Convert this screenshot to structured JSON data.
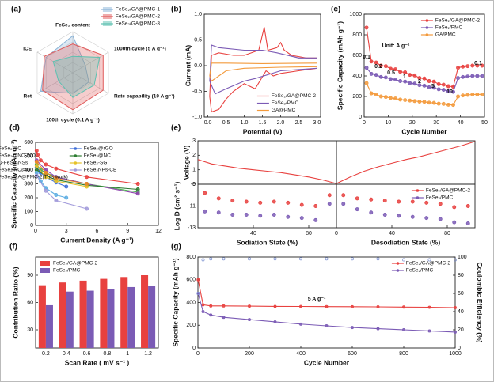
{
  "chart_data": [
    {
      "type": "radar",
      "panel": "(a)",
      "axes": [
        "FeSe₂ content",
        "1000th cycle (5 A g⁻¹)",
        "Rate capability (10 A g⁻¹)",
        "100th cycle (0.1 A g⁻¹)",
        "Rct",
        "ICE"
      ],
      "rlim": [
        0,
        1
      ],
      "rticks": [
        0.25,
        0.5,
        0.75,
        1
      ],
      "legend": "upper right",
      "series": [
        {
          "name": "FeSe₂/GA@PMC-1",
          "color": "#8ab4d8",
          "values": [
            0.9,
            0.35,
            0.45,
            0.5,
            0.9,
            0.75
          ]
        },
        {
          "name": "FeSe₂/GA@PMC-2",
          "color": "#e05a5a",
          "values": [
            0.7,
            0.85,
            0.85,
            0.9,
            0.85,
            0.8
          ]
        },
        {
          "name": "FeSe₂/GA@PMC-3",
          "color": "#5bc0b0",
          "values": [
            0.4,
            0.75,
            0.6,
            0.6,
            0.4,
            0.55
          ]
        }
      ]
    },
    {
      "type": "line",
      "panel": "(b)",
      "xlabel": "Potential (V)",
      "ylabel": "Current (mA)",
      "xlim": [
        -0.1,
        3.1
      ],
      "ylim": [
        -1.0,
        1.0
      ],
      "xticks": [
        {
          "value": 0,
          "label": "0.0"
        },
        0.5,
        {
          "value": 1,
          "label": "1.0"
        },
        1.5,
        {
          "value": 2,
          "label": "2.0"
        },
        2.5,
        {
          "value": 3,
          "label": "3.0"
        }
      ],
      "yticks": [
        {
          "value": -1,
          "label": "-1.0"
        },
        -0.5,
        {
          "value": 0,
          "label": "0.0"
        },
        0.5,
        {
          "value": 1,
          "label": "1.0"
        }
      ],
      "legend": "lower right",
      "series": [
        {
          "name": "FeSe₂/GA@PMC-2",
          "color": "#e8413f",
          "style": "line",
          "x": [
            3.0,
            2.5,
            2.0,
            1.8,
            1.6,
            1.3,
            1.0,
            0.7,
            0.5,
            0.3,
            0.1,
            0.05,
            0.1,
            0.3,
            0.7,
            1.0,
            1.4,
            1.55,
            1.65,
            1.9,
            2.0,
            2.1,
            2.3,
            2.7,
            3.0
          ],
          "values": [
            -0.05,
            -0.1,
            -0.15,
            -0.2,
            -0.1,
            -0.45,
            -0.35,
            -0.5,
            -0.65,
            -0.85,
            -0.9,
            -0.6,
            0.2,
            0.25,
            0.2,
            0.2,
            0.3,
            0.75,
            0.3,
            0.35,
            0.45,
            0.3,
            0.2,
            0.15,
            0.15
          ]
        },
        {
          "name": "FeSe₂/PMC",
          "color": "#7b5bb5",
          "style": "line",
          "x": [
            3.0,
            2.0,
            1.3,
            1.0,
            0.5,
            0.2,
            0.05,
            0.1,
            0.3,
            1.0,
            1.5,
            1.9,
            2.5,
            3.0
          ],
          "values": [
            -0.05,
            -0.1,
            -0.25,
            -0.3,
            -0.45,
            -0.55,
            -0.3,
            0.4,
            0.35,
            0.3,
            0.3,
            0.25,
            0.15,
            0.15
          ]
        },
        {
          "name": "GA@PMC",
          "color": "#f39a3c",
          "style": "line",
          "x": [
            3.0,
            2.0,
            1.0,
            0.5,
            0.1,
            0.05,
            0.1,
            0.5,
            1.5,
            3.0
          ],
          "values": [
            -0.02,
            -0.03,
            -0.05,
            -0.1,
            -0.3,
            -0.2,
            0.05,
            0.05,
            0.04,
            0.05
          ]
        }
      ]
    },
    {
      "type": "line",
      "panel": "(c)",
      "xlabel": "Cycle Number",
      "ylabel": "Specific Capacity (mAh g⁻¹)",
      "xlim": [
        0,
        50
      ],
      "ylim": [
        0,
        1000
      ],
      "xticks": [
        0,
        10,
        20,
        30,
        40,
        50
      ],
      "yticks": [
        0,
        200,
        400,
        600,
        800,
        1000
      ],
      "legend": "upper right",
      "annotations": [
        "0.1",
        "0.2",
        "0.5",
        "1",
        "2",
        "5",
        "10",
        "0.1",
        "Unit: A g⁻¹"
      ],
      "series": [
        {
          "name": "FeSe₂/GA@PMC-2",
          "color": "#e8413f",
          "style": "line+marker",
          "x": [
            1,
            3,
            5,
            7,
            9,
            11,
            13,
            15,
            17,
            19,
            21,
            23,
            25,
            27,
            29,
            31,
            33,
            35,
            37,
            39,
            41,
            43,
            45,
            47,
            49
          ],
          "values": [
            870,
            540,
            530,
            500,
            495,
            470,
            465,
            440,
            435,
            410,
            405,
            380,
            375,
            350,
            345,
            320,
            315,
            300,
            295,
            480,
            490,
            495,
            500,
            500,
            500
          ]
        },
        {
          "name": "FeSe₂/PMC",
          "color": "#7b5bb5",
          "style": "line+marker",
          "x": [
            1,
            3,
            5,
            7,
            9,
            11,
            13,
            15,
            17,
            19,
            21,
            23,
            25,
            27,
            29,
            31,
            33,
            35,
            37,
            39,
            41,
            43,
            45,
            47,
            49
          ],
          "values": [
            480,
            420,
            410,
            390,
            385,
            370,
            365,
            350,
            345,
            330,
            325,
            310,
            305,
            290,
            285,
            270,
            265,
            250,
            245,
            380,
            390,
            395,
            400,
            400,
            400
          ]
        },
        {
          "name": "GA/PMC",
          "color": "#f39a3c",
          "style": "line+marker",
          "x": [
            1,
            3,
            5,
            7,
            9,
            11,
            13,
            15,
            17,
            19,
            21,
            23,
            25,
            27,
            29,
            31,
            33,
            35,
            37,
            39,
            41,
            43,
            45,
            47,
            49
          ],
          "values": [
            330,
            230,
            220,
            200,
            195,
            185,
            180,
            170,
            165,
            160,
            155,
            150,
            148,
            140,
            138,
            130,
            128,
            120,
            118,
            200,
            210,
            215,
            220,
            220,
            220
          ]
        }
      ]
    },
    {
      "type": "line",
      "panel": "(d)",
      "xlabel": "Current Density (A g⁻¹)",
      "ylabel": "Specific Capacity (mAh g⁻¹)",
      "xlim": [
        0,
        12
      ],
      "ylim": [
        0,
        600
      ],
      "xticks": [
        0,
        3,
        6,
        9,
        12
      ],
      "yticks": [
        0,
        100,
        200,
        300,
        400,
        500,
        600
      ],
      "legend": "upper right",
      "legend_columns": 2,
      "series": [
        {
          "name": "FeSe₂@C",
          "color": "#4caf50",
          "style": "line+marker",
          "x": [
            0.1,
            0.5,
            1,
            2,
            5,
            10
          ],
          "values": [
            440,
            400,
            380,
            350,
            300,
            240
          ]
        },
        {
          "name": "FeSe₂@rGO",
          "color": "#3f6fd8",
          "style": "line+marker",
          "x": [
            0.1,
            0.5,
            1,
            2,
            3
          ],
          "values": [
            420,
            380,
            350,
            310,
            280
          ]
        },
        {
          "name": "FeSe₂@NC-500",
          "color": "#8e44ad",
          "style": "line+marker",
          "x": [
            0.1,
            1,
            2,
            5,
            10
          ],
          "values": [
            470,
            400,
            350,
            300,
            230
          ]
        },
        {
          "name": "FeSe₂@NC",
          "color": "#2e7d32",
          "style": "line+marker",
          "x": [
            0.1,
            1,
            2,
            5,
            10
          ],
          "values": [
            400,
            360,
            330,
            290,
            260
          ]
        },
        {
          "name": "O-FeSe₂NSs",
          "color": "#5dade2",
          "style": "line+marker",
          "x": [
            0.1,
            0.5,
            1,
            2,
            3
          ],
          "values": [
            380,
            320,
            270,
            220,
            200
          ]
        },
        {
          "name": "FeSe₂-SG",
          "color": "#e6c229",
          "style": "line+marker",
          "x": [
            0.1,
            1,
            2,
            5
          ],
          "values": [
            430,
            350,
            320,
            280
          ]
        },
        {
          "name": "FeSe₂/NC@G",
          "color": "#f08a24",
          "style": "line+marker",
          "x": [
            0.1,
            1,
            2,
            5
          ],
          "values": [
            460,
            380,
            340,
            300
          ]
        },
        {
          "name": "FeSe₂NPs-CB",
          "color": "#a29bdb",
          "style": "line+marker",
          "x": [
            0.1,
            1,
            2,
            5
          ],
          "values": [
            360,
            250,
            180,
            120
          ]
        },
        {
          "name": "FeSe₂/GA@PMC-2(This work)",
          "color": "#e8413f",
          "style": "line+marker",
          "x": [
            0.1,
            0.2,
            0.5,
            1,
            2,
            5,
            10
          ],
          "values": [
            540,
            510,
            470,
            440,
            410,
            350,
            300
          ]
        }
      ]
    },
    {
      "type": "line",
      "panel": "(e)",
      "ylabel": "Voltage (V)",
      "xlim": [
        0,
        100
      ],
      "ylim": [
        0,
        3
      ],
      "yticks": [
        0,
        1,
        2,
        3
      ],
      "series": [
        {
          "color": "#e8413f",
          "style": "line",
          "x": [
            0,
            10,
            20,
            30,
            40,
            50,
            60,
            70,
            80,
            90,
            100
          ],
          "values": [
            1.7,
            1.4,
            1.25,
            1.1,
            1.0,
            0.9,
            0.8,
            0.65,
            0.5,
            0.3,
            0.05
          ]
        }
      ]
    },
    {
      "type": "line",
      "xlim": [
        0,
        100
      ],
      "ylim": [
        0,
        3
      ],
      "series": [
        {
          "color": "#e8413f",
          "style": "line",
          "x": [
            0,
            10,
            20,
            30,
            40,
            50,
            60,
            70,
            80,
            90,
            100
          ],
          "values": [
            0.05,
            0.5,
            0.9,
            1.2,
            1.45,
            1.7,
            1.9,
            2.15,
            2.4,
            2.65,
            2.95
          ]
        }
      ]
    },
    {
      "type": "scatter",
      "xlabel": "Sodiation State (%)",
      "ylabel": "Log D (cm² s⁻¹)",
      "xlim": [
        0,
        100
      ],
      "ylim": [
        -13,
        -9
      ],
      "xticks": [
        40,
        80
      ],
      "yticks": [
        -13,
        -11,
        -9
      ],
      "series": [
        {
          "color": "#e8413f",
          "style": "marker",
          "x": [
            5,
            15,
            25,
            35,
            45,
            55,
            65,
            75,
            85,
            95
          ],
          "values": [
            -9.8,
            -10.3,
            -10.5,
            -10.6,
            -10.7,
            -10.6,
            -10.7,
            -10.9,
            -11.0,
            -10.0
          ]
        },
        {
          "color": "#7b5bb5",
          "style": "marker",
          "x": [
            5,
            15,
            25,
            35,
            45,
            55,
            65,
            75,
            85,
            95
          ],
          "values": [
            -11.5,
            -11.6,
            -11.8,
            -11.8,
            -11.9,
            -11.8,
            -12.0,
            -12.1,
            -12.3,
            -10.8
          ]
        }
      ]
    },
    {
      "type": "scatter",
      "xlabel": "Desodiation State (%)",
      "xlim": [
        0,
        100
      ],
      "ylim": [
        -13,
        -9
      ],
      "xticks": [
        0,
        40,
        80
      ],
      "legend": "upper right",
      "series": [
        {
          "name": "FeSe₂/GA@PMC-2",
          "color": "#e8413f",
          "style": "marker",
          "x": [
            5,
            15,
            25,
            35,
            45,
            55,
            65,
            75,
            85,
            95
          ],
          "values": [
            -10.0,
            -10.3,
            -10.4,
            -10.5,
            -10.6,
            -10.6,
            -10.7,
            -10.8,
            -11.1,
            -11.0
          ]
        },
        {
          "name": "FeSe₂/PMC",
          "color": "#7b5bb5",
          "style": "marker",
          "x": [
            5,
            15,
            25,
            35,
            45,
            55,
            65,
            75,
            85,
            95
          ],
          "values": [
            -10.8,
            -11.3,
            -11.6,
            -11.8,
            -11.9,
            -12.0,
            -12.1,
            -12.2,
            -12.5,
            -12.6
          ]
        }
      ]
    },
    {
      "type": "bar",
      "panel": "(f)",
      "xlabel": "Scan Rate ( mV s⁻¹ )",
      "ylabel": "Contribution Ratio (%)",
      "categories": [
        "0.2",
        "0.4",
        "0.6",
        "0.8",
        "1",
        "1.2"
      ],
      "ylim": [
        10,
        110
      ],
      "yticks": [
        30,
        60,
        90
      ],
      "legend": "upper left",
      "series": [
        {
          "name": "FeSe₂/GA@PMC-2",
          "color": "#e8413f",
          "values": [
            79,
            82,
            84,
            86,
            88,
            90
          ]
        },
        {
          "name": "FeSe₂/PMC",
          "color": "#7b5bb5",
          "values": [
            57,
            72,
            73,
            75,
            77,
            78
          ]
        }
      ]
    },
    {
      "type": "line",
      "panel": "(g)",
      "xlabel": "Cycle Number",
      "ylabel": "Specific Capacity (mAh g⁻¹)",
      "y2label": "Coulombic Efficiency (%)",
      "xlim": [
        0,
        1000
      ],
      "ylim": [
        0,
        800
      ],
      "y2lim": [
        0,
        100
      ],
      "xticks": [
        0,
        200,
        400,
        600,
        800,
        1000
      ],
      "yticks": [
        0,
        200,
        400,
        600,
        800
      ],
      "y2ticks": [
        0,
        20,
        40,
        60,
        80,
        100
      ],
      "legend": "upper right",
      "annotations": [
        "5 A g⁻¹"
      ],
      "series": [
        {
          "name": "FeSe₂/GA@PMC-2",
          "color": "#e8413f",
          "style": "line+marker",
          "x": [
            1,
            20,
            50,
            100,
            200,
            300,
            400,
            500,
            600,
            700,
            800,
            900,
            1000
          ],
          "values": [
            600,
            380,
            370,
            370,
            368,
            366,
            365,
            364,
            363,
            362,
            360,
            358,
            355
          ]
        },
        {
          "name": "FeSe₂/PMC",
          "color": "#7b5bb5",
          "style": "line+marker",
          "x": [
            1,
            20,
            50,
            100,
            200,
            300,
            400,
            500,
            600,
            700,
            800,
            900,
            1000
          ],
          "values": [
            480,
            320,
            290,
            270,
            250,
            230,
            210,
            195,
            180,
            170,
            160,
            150,
            140
          ]
        },
        {
          "color": "#7a8fd0",
          "style": "open-marker",
          "axis": "y2",
          "x": [
            1,
            20,
            50,
            100,
            200,
            300,
            400,
            500,
            600,
            700,
            800,
            900,
            1000
          ],
          "values": [
            60,
            97,
            98,
            98,
            98,
            98,
            98,
            98,
            98,
            98,
            97,
            97,
            97
          ]
        }
      ]
    }
  ]
}
